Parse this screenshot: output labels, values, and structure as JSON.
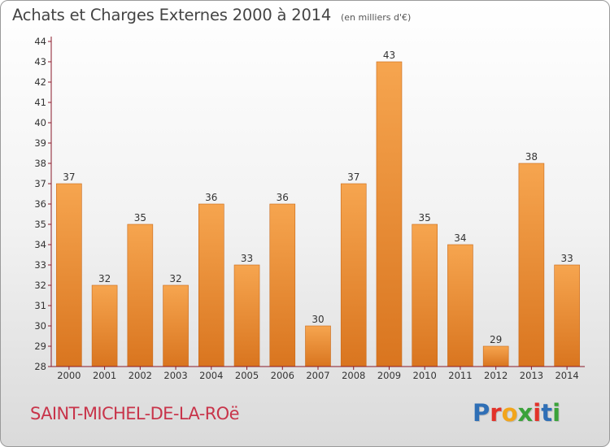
{
  "header": {
    "title": "Achats et Charges Externes 2000 à 2014",
    "unit_note": "(en milliers d'€)"
  },
  "footer": {
    "place_name": "SAINT-MICHEL-DE-LA-ROë",
    "brand": {
      "text": "Proxiti",
      "letter_colors": [
        "#2f6fb6",
        "#e2322a",
        "#f2a51c",
        "#3aa23a",
        "#e2322a",
        "#2f6fb6",
        "#3aa23a"
      ]
    }
  },
  "colors": {
    "bar_top": "#f6a54f",
    "bar_bottom": "#d9751f",
    "bar_edge": "#c96a1a",
    "axis": "#8a1a2a",
    "text": "#333333",
    "place_name": "#c8344a"
  },
  "chart_data": {
    "type": "bar",
    "categories": [
      "2000",
      "2001",
      "2002",
      "2003",
      "2004",
      "2005",
      "2006",
      "2007",
      "2008",
      "2009",
      "2010",
      "2011",
      "2012",
      "2013",
      "2014"
    ],
    "values": [
      37,
      32,
      35,
      32,
      36,
      33,
      36,
      30,
      37,
      43,
      35,
      34,
      29,
      38,
      33
    ],
    "value_labels": [
      "37",
      "32",
      "35",
      "32",
      "36",
      "33",
      "36",
      "30",
      "37",
      "43",
      "35",
      "34",
      "29",
      "38",
      "33"
    ],
    "y_ticks": [
      28,
      29,
      30,
      31,
      32,
      33,
      34,
      35,
      36,
      37,
      38,
      39,
      40,
      41,
      42,
      43,
      44
    ],
    "ylim": [
      28,
      44
    ],
    "title": "Achats et Charges Externes 2000 à 2014",
    "subtitle": "(en milliers d'€)",
    "xlabel": "",
    "ylabel": "",
    "grid": false,
    "legend": "none"
  }
}
